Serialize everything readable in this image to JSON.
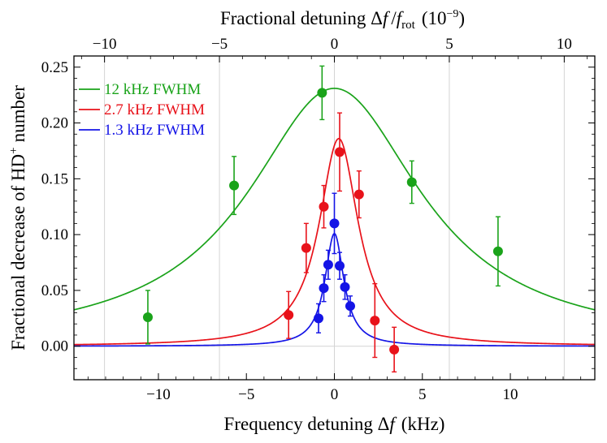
{
  "chart_data": {
    "type": "scatter",
    "title": "",
    "xlabel": "Frequency detuning Δf (kHz)",
    "xlabel_parts": {
      "text": "Frequency detuning Δ",
      "var": "f",
      "unit": "(kHz)"
    },
    "ylabel": "Fractional decrease of HD+ number",
    "ylabel_parts": {
      "text": "Fractional decrease of HD",
      "sup": "+",
      "tail": "number"
    },
    "top_xlabel": "Fractional detuning Δf / f_rot (10^-9)",
    "top_xlabel_parts": {
      "text": "Fractional detuning Δ",
      "var": "f",
      "slash": "/",
      "var2": "f",
      "sub": "rot",
      "unit_open": "(10",
      "exp": "−9",
      "unit_close": ")"
    },
    "xlim": [
      -14.8,
      14.8
    ],
    "ylim": [
      -0.03,
      0.26
    ],
    "top_xlim": [
      -11.33,
      11.33
    ],
    "x_ticks": [
      -10,
      -5,
      0,
      5,
      10
    ],
    "x_tick_labels": [
      "−10",
      "−5",
      "0",
      "5",
      "10"
    ],
    "top_x_ticks": [
      -10,
      -5,
      0,
      5,
      10
    ],
    "top_x_tick_labels": [
      "−10",
      "−5",
      "0",
      "5",
      "10"
    ],
    "y_ticks": [
      0.0,
      0.05,
      0.1,
      0.15,
      0.2,
      0.25
    ],
    "y_tick_labels": [
      "0.00",
      "0.05",
      "0.10",
      "0.15",
      "0.20",
      "0.25"
    ],
    "grid": "vertical",
    "legend_position": "top-left",
    "series": [
      {
        "name": "12 kHz FWHM",
        "color": "#1aa31a",
        "fit": {
          "amplitude": 0.231,
          "center": 0.0,
          "fwhm": 12.0
        },
        "points": [
          {
            "x": -10.6,
            "y": 0.026,
            "err": 0.024
          },
          {
            "x": -5.7,
            "y": 0.144,
            "err": 0.026
          },
          {
            "x": -0.7,
            "y": 0.227,
            "err": 0.024
          },
          {
            "x": 4.4,
            "y": 0.147,
            "err": 0.019
          },
          {
            "x": 9.3,
            "y": 0.085,
            "err": 0.031
          }
        ]
      },
      {
        "name": "2.7 kHz FWHM",
        "color": "#e8121a",
        "fit": {
          "amplitude": 0.186,
          "center": 0.25,
          "fwhm": 2.7
        },
        "points": [
          {
            "x": -2.6,
            "y": 0.028,
            "err": 0.021
          },
          {
            "x": -1.6,
            "y": 0.088,
            "err": 0.022
          },
          {
            "x": -0.6,
            "y": 0.125,
            "err": 0.019
          },
          {
            "x": 0.3,
            "y": 0.174,
            "err": 0.035
          },
          {
            "x": 1.4,
            "y": 0.136,
            "err": 0.021
          },
          {
            "x": 2.3,
            "y": 0.023,
            "err": 0.033
          },
          {
            "x": 3.4,
            "y": -0.003,
            "err": 0.02
          }
        ]
      },
      {
        "name": "1.3 kHz FWHM",
        "color": "#1414e6",
        "fit": {
          "amplitude": 0.101,
          "center": 0.0,
          "fwhm": 1.3
        },
        "points": [
          {
            "x": -0.9,
            "y": 0.025,
            "err": 0.013
          },
          {
            "x": -0.6,
            "y": 0.052,
            "err": 0.012
          },
          {
            "x": -0.35,
            "y": 0.073,
            "err": 0.013
          },
          {
            "x": 0.0,
            "y": 0.11,
            "err": 0.027
          },
          {
            "x": 0.3,
            "y": 0.072,
            "err": 0.012
          },
          {
            "x": 0.6,
            "y": 0.053,
            "err": 0.011
          },
          {
            "x": 0.9,
            "y": 0.036,
            "err": 0.009
          }
        ]
      }
    ]
  }
}
